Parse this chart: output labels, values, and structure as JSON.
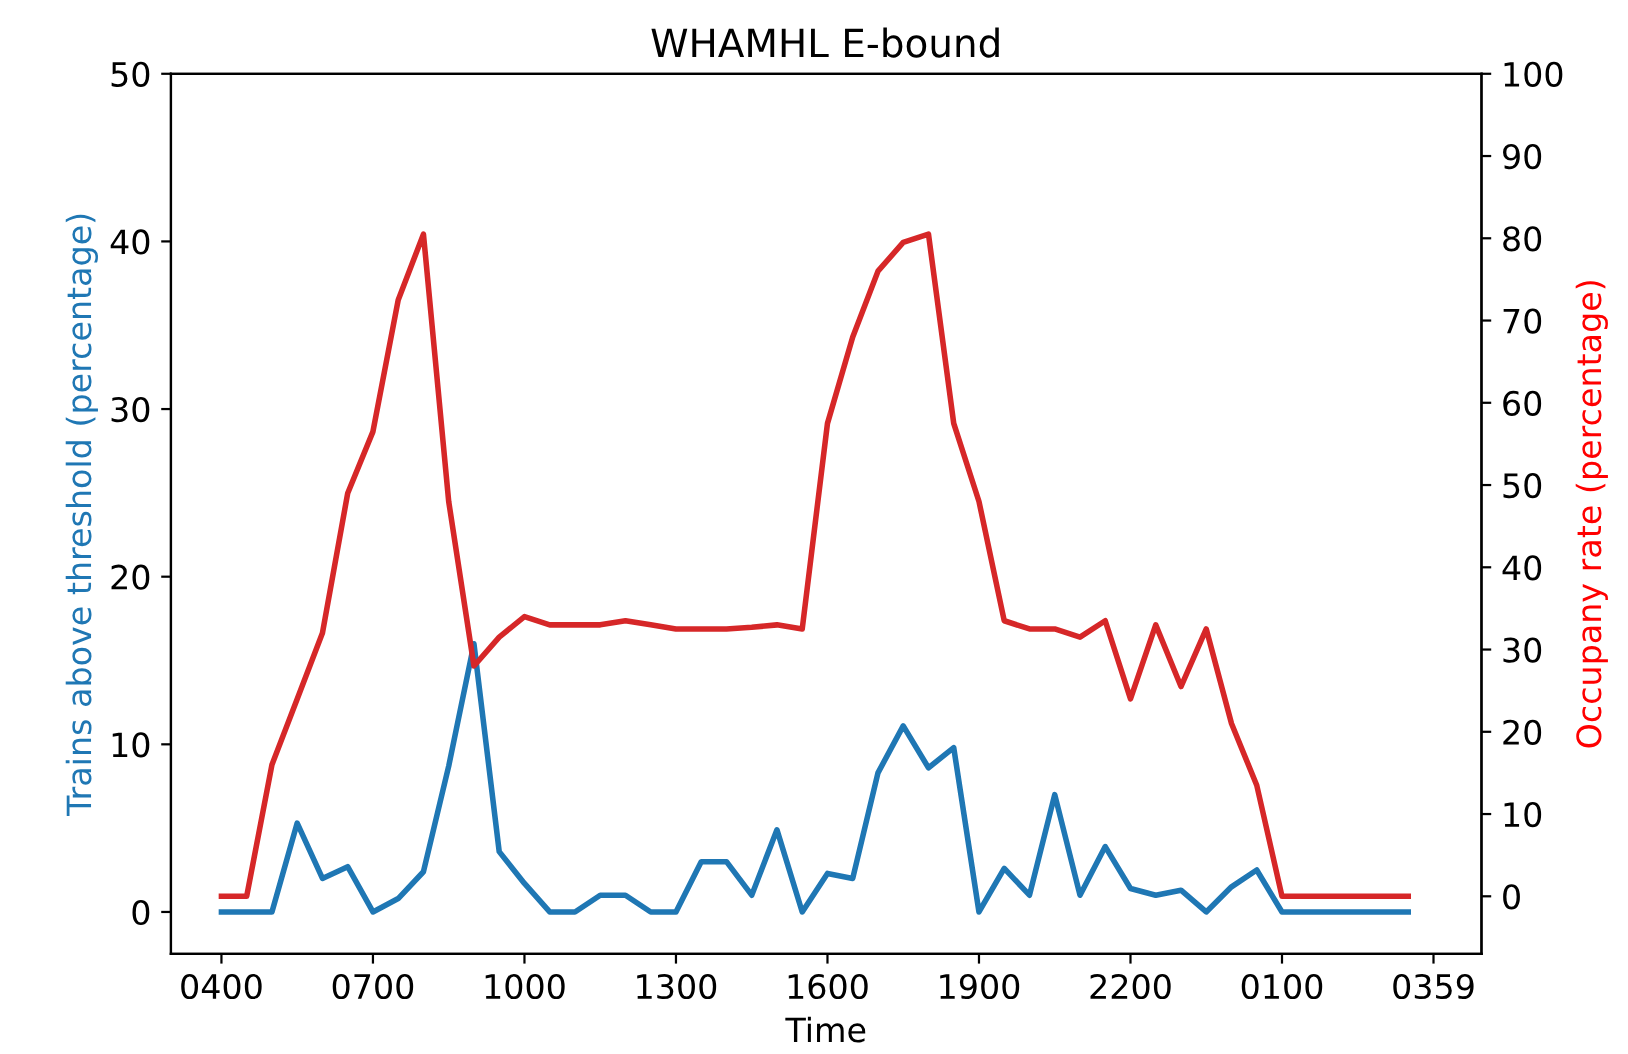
{
  "chart_data": {
    "type": "line",
    "title": "WHAMHL E-bound",
    "xlabel": "Time",
    "ylabel": "Trains above threshold (percentage)",
    "y2label": "Occupany rate (percentage)",
    "categories": [
      "0400",
      null,
      null,
      null,
      null,
      null,
      "0700",
      null,
      null,
      null,
      null,
      null,
      "1000",
      null,
      null,
      null,
      null,
      null,
      "1300",
      null,
      null,
      null,
      null,
      null,
      "1600",
      null,
      null,
      null,
      null,
      null,
      "1900",
      null,
      null,
      null,
      null,
      null,
      "2200",
      null,
      null,
      null,
      null,
      null,
      "0100",
      null,
      null,
      null,
      null,
      null,
      "0359"
    ],
    "series": [
      {
        "color": "#1f77b4",
        "values": [
          0,
          0,
          0,
          5.3,
          2,
          2.7,
          0,
          0.8,
          2.4,
          8.7,
          16,
          3.6,
          1.7,
          0,
          0,
          1,
          1,
          0,
          0,
          3,
          3,
          1,
          4.9,
          0,
          2.3,
          2,
          8.3,
          11.1,
          8.6,
          9.8,
          0,
          2.6,
          1,
          7,
          1,
          3.9,
          1.4,
          1,
          1.3,
          0,
          1.5,
          2.5,
          0,
          0,
          0,
          0,
          0,
          0,
          null
        ]
      },
      {
        "color": "#d62728",
        "axis": "y2",
        "values": [
          0,
          0,
          16,
          24,
          32,
          49,
          56.5,
          72.5,
          80.5,
          48,
          28,
          31.5,
          34,
          33,
          33,
          33,
          33.5,
          33,
          32.5,
          32.5,
          32.5,
          32.7,
          33,
          32.5,
          57.5,
          68,
          76,
          79.5,
          80.5,
          57.5,
          48,
          33.5,
          32.5,
          32.5,
          31.5,
          33.5,
          24,
          33,
          25.5,
          32.5,
          21,
          13.5,
          0,
          0,
          0,
          0,
          0,
          0,
          null
        ]
      }
    ],
    "ylim": [
      -2.5,
      50
    ],
    "yticks": [
      0,
      10,
      20,
      30,
      40,
      50
    ],
    "y2lim": [
      -7,
      100
    ],
    "y2ticks": [
      0,
      10,
      20,
      30,
      40,
      50,
      60,
      70,
      80,
      90,
      100
    ],
    "grid": false,
    "legend": false
  }
}
